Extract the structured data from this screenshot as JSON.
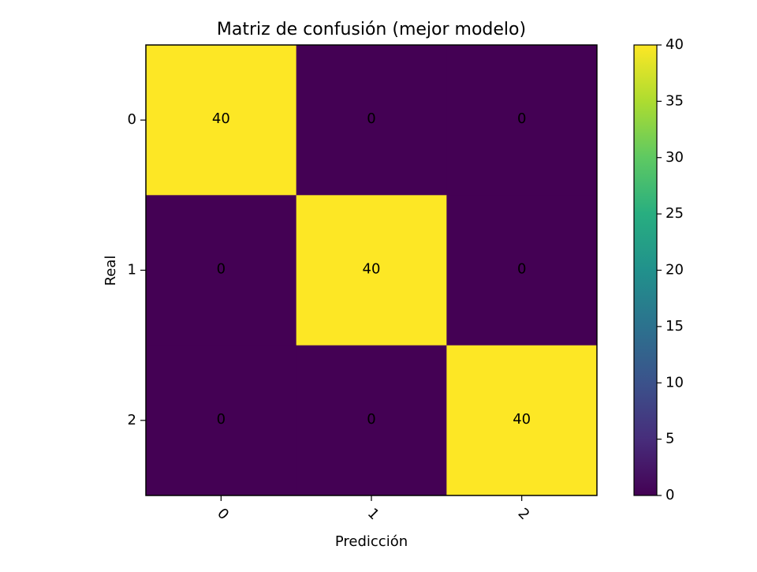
{
  "chart_data": {
    "type": "heatmap",
    "title": "Matriz de confusión (mejor modelo)",
    "xlabel": "Predicción",
    "ylabel": "Real",
    "x_categories": [
      "0",
      "1",
      "2"
    ],
    "y_categories": [
      "0",
      "1",
      "2"
    ],
    "values": [
      [
        40,
        0,
        0
      ],
      [
        0,
        40,
        0
      ],
      [
        0,
        0,
        40
      ]
    ],
    "colormap": "viridis",
    "colorbar": {
      "range": [
        0,
        40
      ],
      "ticks": [
        0,
        5,
        10,
        15,
        20,
        25,
        30,
        35,
        40
      ]
    },
    "x_tick_rotation": "45",
    "grid": false,
    "colors": {
      "low": "#440154",
      "high": "#fde725"
    }
  }
}
